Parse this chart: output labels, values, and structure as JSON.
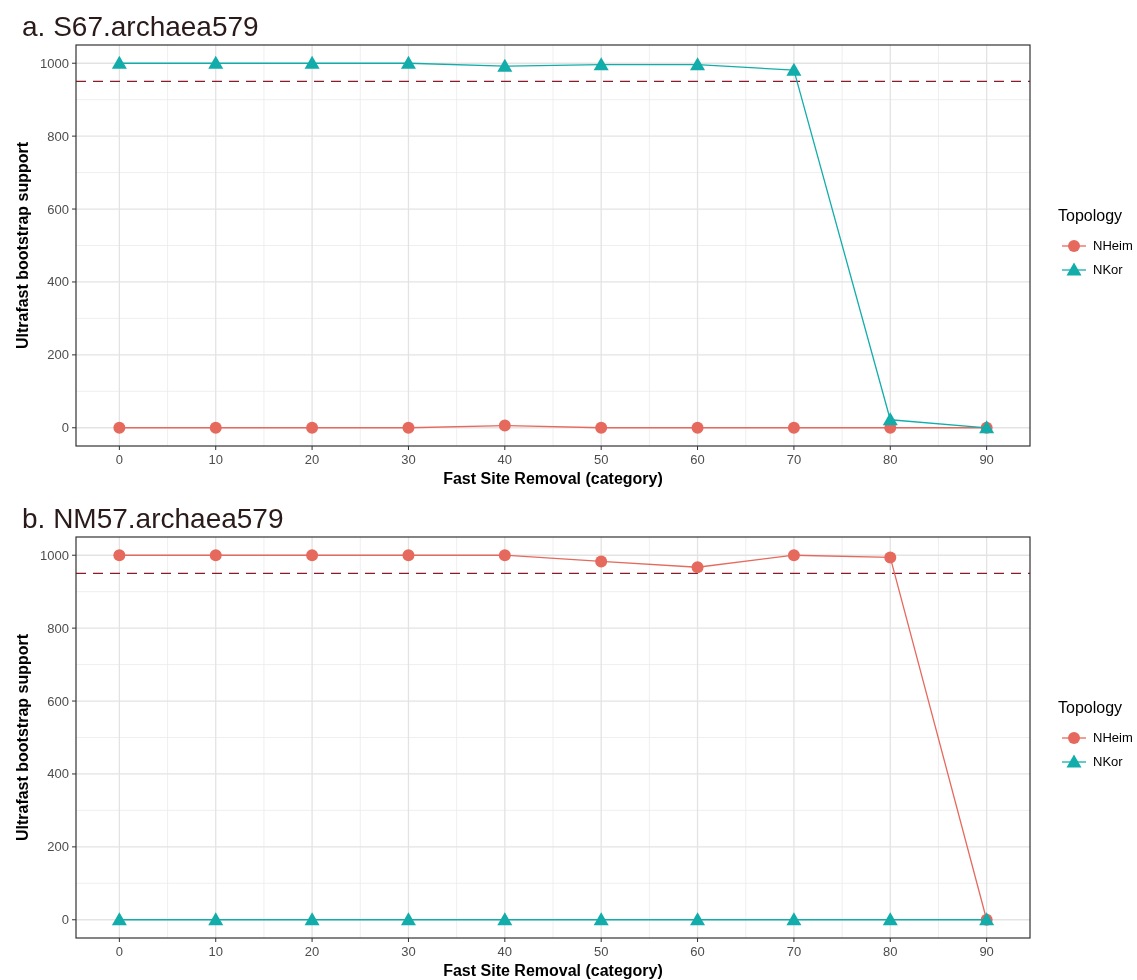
{
  "chart_data": [
    {
      "type": "line",
      "title": "a. S67.archaea579",
      "xlabel": "Fast Site Removal (category)",
      "ylabel": "Ultrafast bootstrap support",
      "legend_title": "Topology",
      "legend": "right",
      "grid": true,
      "x": [
        0,
        10,
        20,
        30,
        40,
        50,
        60,
        70,
        80,
        90
      ],
      "xlim": [
        -4.5,
        94.5
      ],
      "xticks": [
        0,
        10,
        20,
        30,
        40,
        50,
        60,
        70,
        80,
        90
      ],
      "ylim": [
        -50,
        1050
      ],
      "yticks": [
        0,
        200,
        400,
        600,
        800,
        1000
      ],
      "series": [
        {
          "name": "NHeim",
          "color": "#e6695e",
          "marker": "circle",
          "values": [
            0,
            0,
            0,
            0,
            6,
            0,
            0,
            0,
            0,
            0
          ]
        },
        {
          "name": "NKor",
          "color": "#12adaa",
          "marker": "triangle",
          "values": [
            1000,
            1000,
            1000,
            1000,
            992,
            996,
            996,
            981,
            22,
            0
          ]
        }
      ],
      "ref_lines": [
        {
          "axis": "y",
          "value": 950,
          "color": "#8b1a2b",
          "line_style": "dashed"
        }
      ]
    },
    {
      "type": "line",
      "title": "b. NM57.archaea579",
      "xlabel": "Fast Site Removal (category)",
      "ylabel": "Ultrafast bootstrap support",
      "legend_title": "Topology",
      "legend": "right",
      "grid": true,
      "x": [
        0,
        10,
        20,
        30,
        40,
        50,
        60,
        70,
        80,
        90
      ],
      "xlim": [
        -4.5,
        94.5
      ],
      "xticks": [
        0,
        10,
        20,
        30,
        40,
        50,
        60,
        70,
        80,
        90
      ],
      "ylim": [
        -50,
        1050
      ],
      "yticks": [
        0,
        200,
        400,
        600,
        800,
        1000
      ],
      "series": [
        {
          "name": "NHeim",
          "color": "#e6695e",
          "marker": "circle",
          "values": [
            1000,
            1000,
            1000,
            1000,
            1000,
            983,
            967,
            1000,
            994,
            0
          ]
        },
        {
          "name": "NKor",
          "color": "#12adaa",
          "marker": "triangle",
          "values": [
            0,
            0,
            0,
            0,
            0,
            0,
            0,
            0,
            0,
            0
          ]
        }
      ],
      "ref_lines": [
        {
          "axis": "y",
          "value": 950,
          "color": "#8b1a2b",
          "line_style": "dashed"
        }
      ]
    }
  ]
}
